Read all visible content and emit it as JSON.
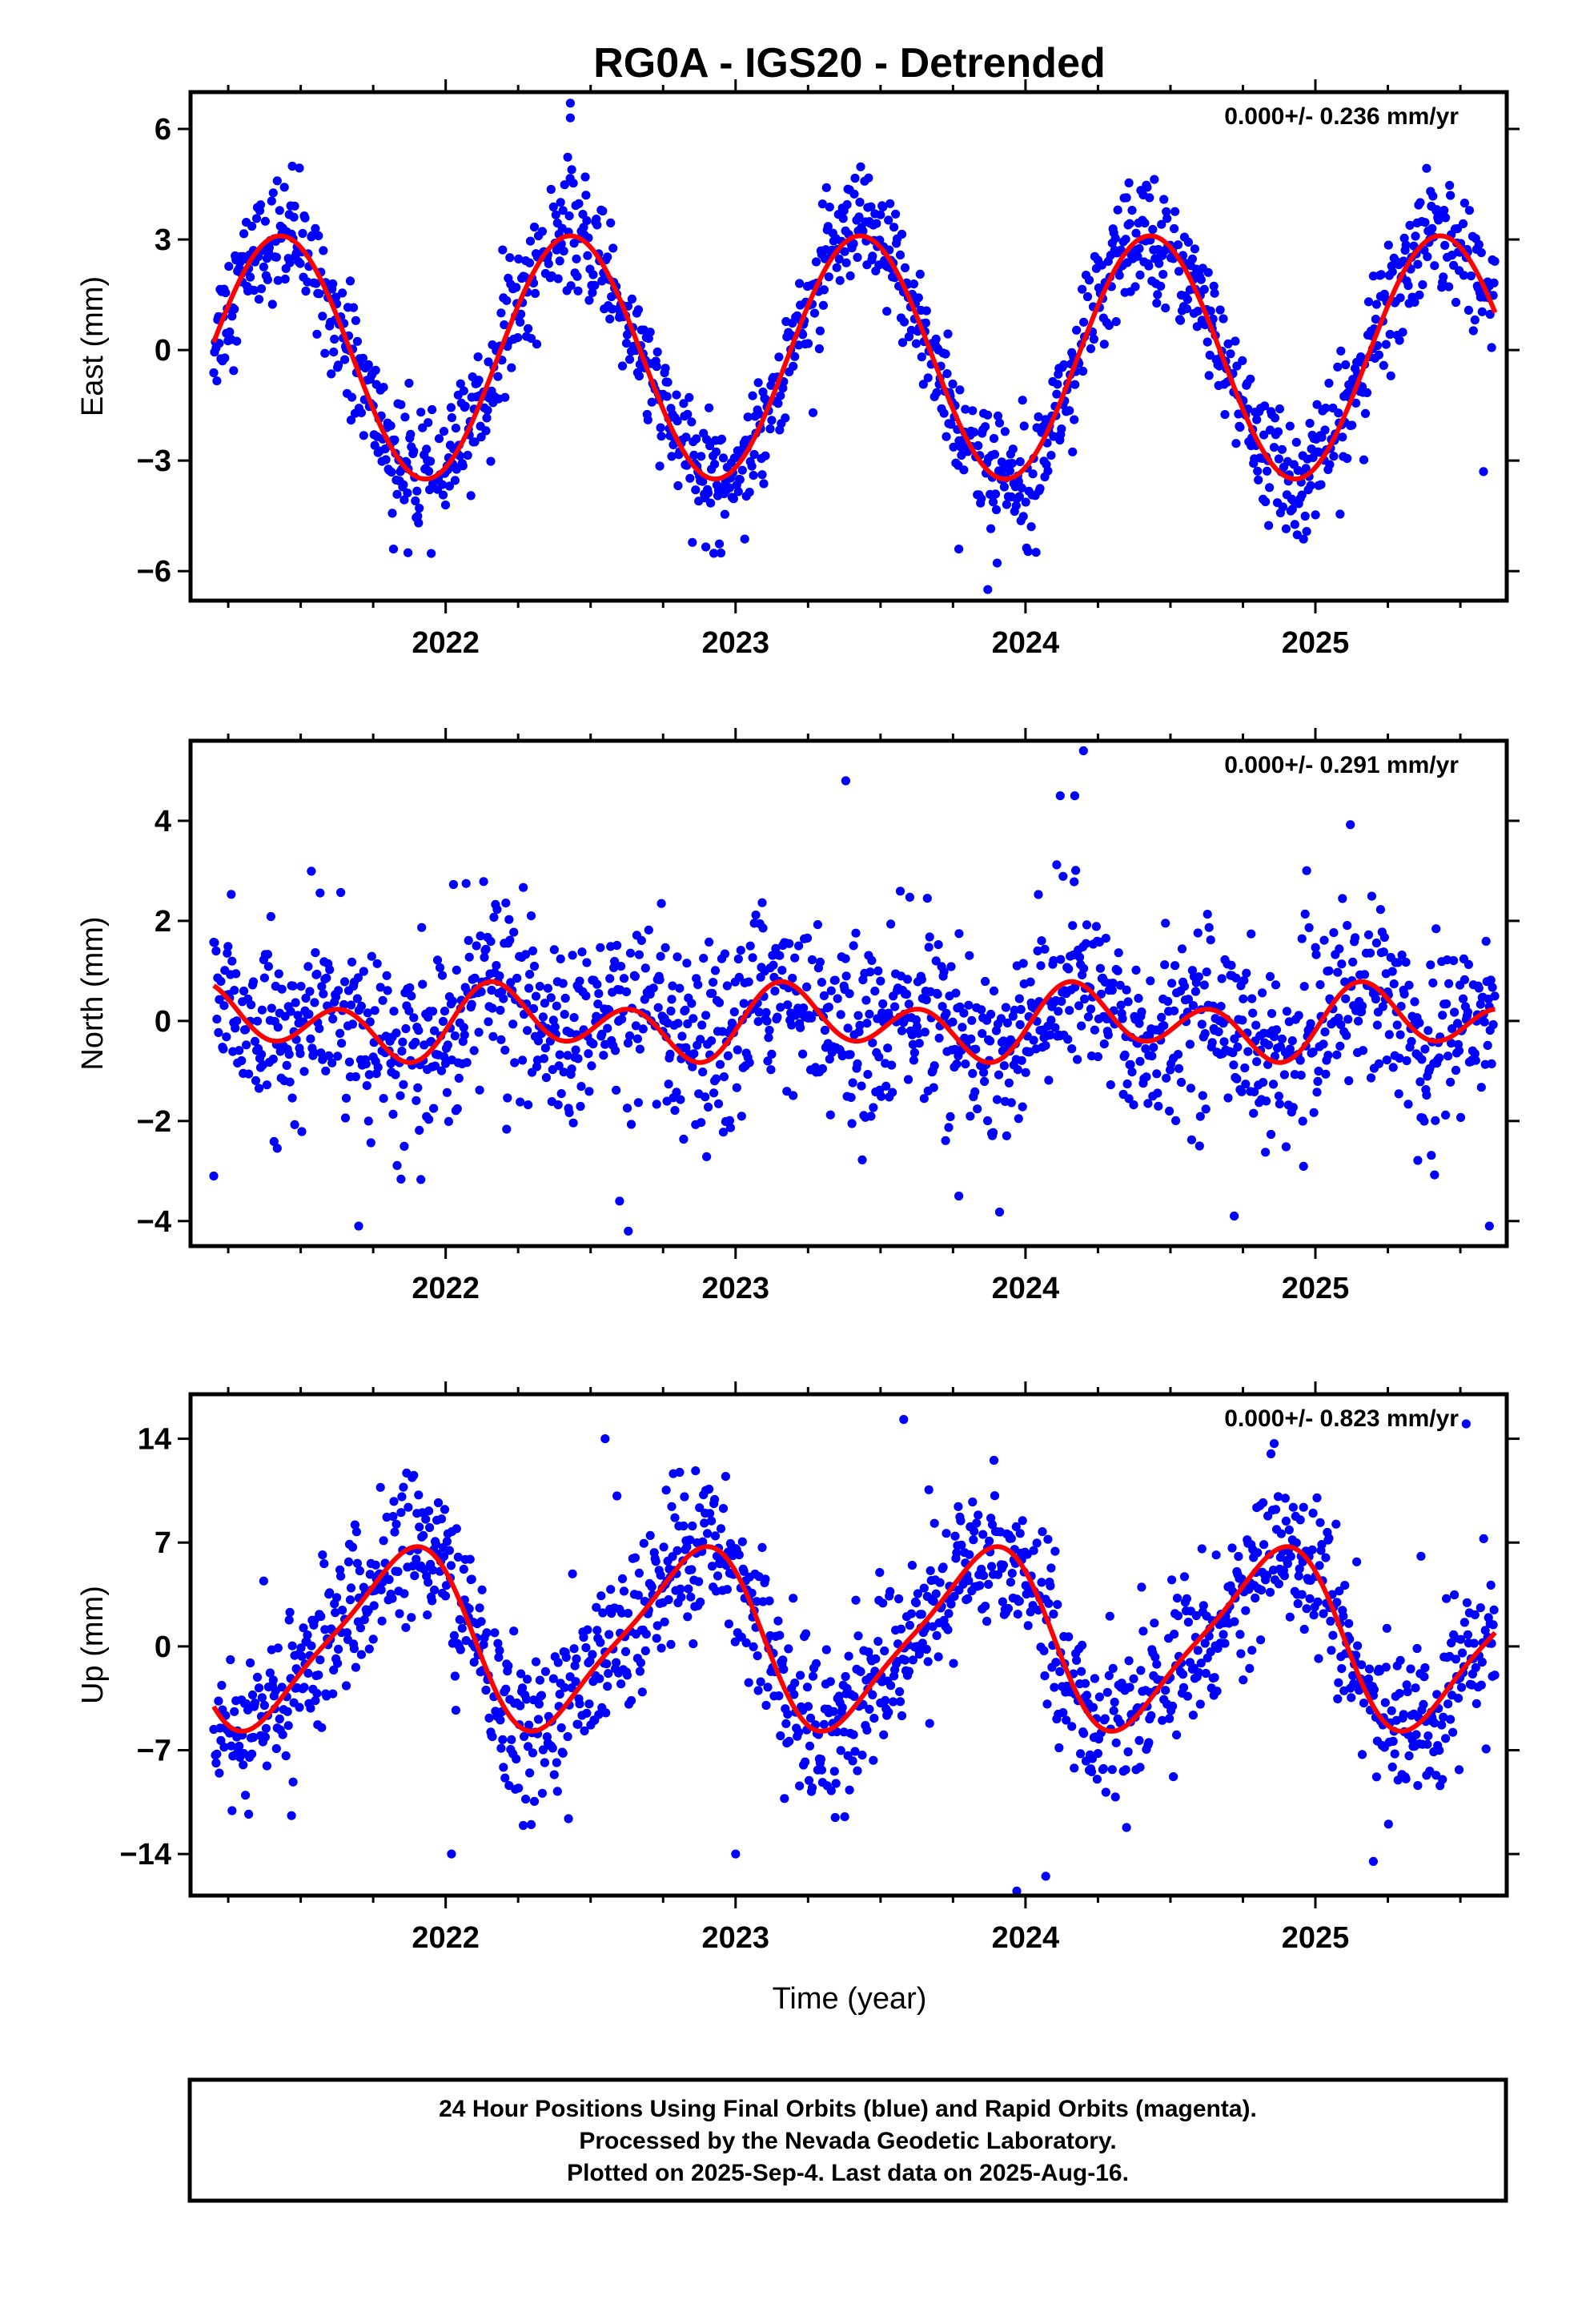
{
  "title": "RG0A - IGS20 - Detrended",
  "xlabel": "Time (year)",
  "footer": {
    "lines": [
      "24 Hour Positions Using Final Orbits (blue) and Rapid Orbits (magenta).",
      "Processed by the Nevada Geodetic Laboratory.",
      "Plotted on 2025-Sep-4. Last data on 2025-Aug-16."
    ]
  },
  "colors": {
    "final_orbits": "#0000ff",
    "model_fit": "#ff0000",
    "frame": "#000000"
  },
  "chart_data": [
    {
      "type": "scatter",
      "name": "east",
      "ylabel": "East (mm)",
      "rate_label": "0.000+/- 0.236 mm/yr",
      "xlim": [
        2021.12,
        2025.66
      ],
      "ylim": [
        -6.8,
        7.0
      ],
      "yticks": [
        6,
        3,
        0,
        -3,
        -6
      ],
      "ytick_labels": [
        "6",
        "3",
        "0",
        "−3",
        "−6"
      ],
      "xticks": [
        2022,
        2023,
        2024,
        2025
      ],
      "xtick_labels": [
        "2022",
        "2023",
        "2024",
        "2025"
      ],
      "data_span": [
        2021.2,
        2025.62
      ],
      "fit": {
        "amp_annual": 3.3,
        "phase_annual": 0.18,
        "amp_semiannual": 0.0,
        "phase_semiannual": 0.0,
        "offset": -0.2
      },
      "scatter_sd": 0.8,
      "outliers": [
        [
          2022.43,
          6.7
        ],
        [
          2022.43,
          6.3
        ],
        [
          2023.87,
          -6.5
        ],
        [
          2023.77,
          -5.4
        ],
        [
          2021.82,
          -5.4
        ],
        [
          2021.87,
          -5.5
        ],
        [
          2025.58,
          -3.3
        ]
      ]
    },
    {
      "type": "scatter",
      "name": "north",
      "ylabel": "North (mm)",
      "rate_label": "0.000+/- 0.291 mm/yr",
      "xlim": [
        2021.12,
        2025.66
      ],
      "ylim": [
        -4.5,
        5.6
      ],
      "yticks": [
        4,
        2,
        0,
        -2,
        -4
      ],
      "ytick_labels": [
        "4",
        "2",
        "0",
        "−2",
        "−4"
      ],
      "xticks": [
        2022,
        2023,
        2024,
        2025
      ],
      "xtick_labels": [
        "2022",
        "2023",
        "2024",
        "2025"
      ],
      "data_span": [
        2021.2,
        2025.62
      ],
      "fit": {
        "amp_annual": 0.35,
        "phase_annual": 0.0,
        "amp_semiannual": 0.55,
        "phase_semiannual": 0.02,
        "offset": -0.05
      },
      "scatter_sd": 0.9,
      "outliers": [
        [
          2024.2,
          5.4
        ],
        [
          2024.17,
          4.5
        ],
        [
          2024.12,
          4.5
        ],
        [
          2023.38,
          4.8
        ],
        [
          2021.7,
          -4.1
        ],
        [
          2022.63,
          -4.2
        ],
        [
          2022.6,
          -3.6
        ],
        [
          2024.72,
          -3.9
        ],
        [
          2023.77,
          -3.5
        ],
        [
          2021.2,
          -3.1
        ],
        [
          2025.6,
          -4.1
        ]
      ]
    },
    {
      "type": "scatter",
      "name": "up",
      "ylabel": "Up (mm)",
      "rate_label": "0.000+/- 0.823 mm/yr",
      "xlim": [
        2021.12,
        2025.66
      ],
      "ylim": [
        -16.8,
        17.0
      ],
      "yticks": [
        14,
        7,
        0,
        -7,
        -14
      ],
      "ytick_labels": [
        "14",
        "7",
        "0",
        "−7",
        "−14"
      ],
      "xticks": [
        2022,
        2023,
        2024,
        2025
      ],
      "xtick_labels": [
        "2022",
        "2023",
        "2024",
        "2025"
      ],
      "data_span": [
        2021.2,
        2025.62
      ],
      "fit": {
        "amp_annual": 5.8,
        "phase_annual": 0.6,
        "amp_semiannual": 1.2,
        "phase_semiannual": 0.35,
        "offset": 0.5
      },
      "scatter_sd": 2.6,
      "outliers": [
        [
          2023.58,
          15.3
        ],
        [
          2025.52,
          15.0
        ],
        [
          2023.97,
          -16.5
        ],
        [
          2024.07,
          -15.5
        ],
        [
          2022.02,
          -14.0
        ],
        [
          2023.0,
          -14.0
        ],
        [
          2025.2,
          -14.5
        ],
        [
          2022.55,
          14.0
        ]
      ]
    }
  ]
}
